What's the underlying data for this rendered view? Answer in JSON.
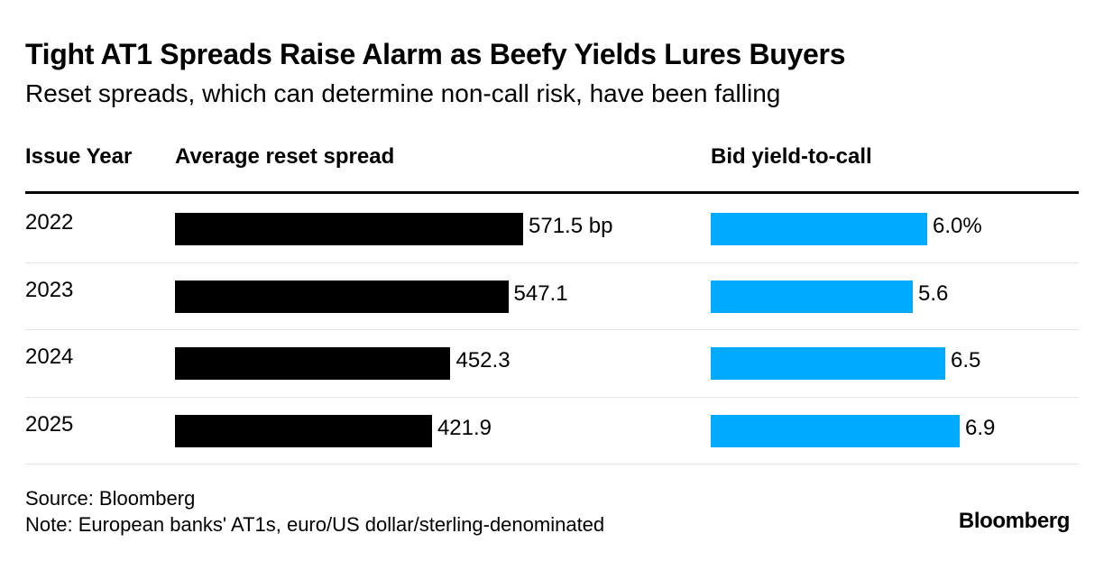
{
  "chart_data": {
    "type": "table",
    "title": "Tight AT1 Spreads Raise Alarm as Beefy Yields Lures Buyers",
    "subtitle": "Reset spreads, which can determine non-call risk, have been falling",
    "columns": {
      "year": "Issue Year",
      "spread": "Average reset spread",
      "yield": "Bid yield-to-call"
    },
    "rows": [
      {
        "year": "2022",
        "spread": 571.5,
        "spread_label": "571.5 bp",
        "yield": 6.0,
        "yield_label": "6.0%"
      },
      {
        "year": "2023",
        "spread": 547.1,
        "spread_label": "547.1",
        "yield": 5.6,
        "yield_label": "5.6"
      },
      {
        "year": "2024",
        "spread": 452.3,
        "spread_label": "452.3",
        "yield": 6.5,
        "yield_label": "6.5"
      },
      {
        "year": "2025",
        "spread": 421.9,
        "spread_label": "421.9",
        "yield": 6.9,
        "yield_label": "6.9"
      }
    ],
    "spread_range": [
      0,
      571.5
    ],
    "yield_range": [
      0,
      6.9
    ],
    "colors": {
      "spread": "#000000",
      "yield": "#00aaff"
    }
  },
  "footer": {
    "source": "Source: Bloomberg",
    "note": "Note: European banks' AT1s, euro/US dollar/sterling-denominated",
    "brand": "Bloomberg"
  }
}
